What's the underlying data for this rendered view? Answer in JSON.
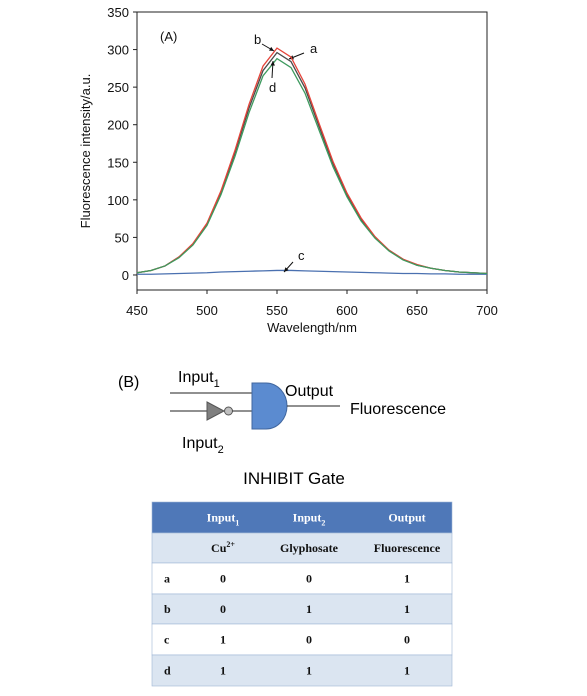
{
  "chart_data": {
    "type": "line",
    "panel_label": "(A)",
    "x_label": "Wavelength/nm",
    "y_label": "Fluorescence intensity/a.u.",
    "x": [
      450,
      460,
      470,
      480,
      490,
      500,
      510,
      520,
      530,
      540,
      550,
      560,
      570,
      580,
      590,
      600,
      610,
      620,
      630,
      640,
      650,
      660,
      670,
      680,
      690,
      700
    ],
    "series": [
      {
        "name": "a",
        "color": "#4a4a4a",
        "values": [
          3,
          6,
          12,
          24,
          41,
          68,
          110,
          163,
          222,
          272,
          296,
          284,
          249,
          198,
          148,
          107,
          74,
          50,
          33,
          21,
          13,
          9,
          6,
          4,
          3,
          2
        ]
      },
      {
        "name": "b",
        "color": "#e5443a",
        "values": [
          3,
          6,
          12,
          24,
          42,
          69,
          112,
          166,
          227,
          278,
          302,
          290,
          254,
          202,
          151,
          109,
          76,
          51,
          33,
          21,
          14,
          9,
          6,
          4,
          3,
          2
        ]
      },
      {
        "name": "c",
        "color": "#4a70b0",
        "values": [
          1,
          1,
          1.5,
          2,
          2.5,
          3,
          4,
          4.5,
          5,
          5.5,
          6,
          6,
          5.5,
          5,
          4.5,
          4,
          3.5,
          3,
          2.5,
          2,
          2,
          1.5,
          1.5,
          1,
          1,
          1
        ]
      },
      {
        "name": "d",
        "color": "#3d9a5e",
        "values": [
          3,
          6,
          12,
          23,
          40,
          66,
          107,
          158,
          216,
          265,
          288,
          276,
          242,
          193,
          144,
          104,
          72,
          49,
          32,
          20,
          13,
          9,
          6,
          4,
          3,
          2
        ]
      }
    ],
    "xlim": [
      450,
      700
    ],
    "xticks": [
      450,
      500,
      550,
      600,
      650,
      700
    ],
    "ylim": [
      -20,
      350
    ],
    "yticks": [
      0,
      50,
      100,
      150,
      200,
      250,
      300,
      350
    ]
  },
  "diagram": {
    "panel_label": "(B)",
    "input1": {
      "text": "Input",
      "sub": "1"
    },
    "input2": {
      "text": "Input",
      "sub": "2"
    },
    "output": "Output",
    "result": "Fluorescence",
    "caption": "INHIBIT Gate"
  },
  "table": {
    "header": [
      {
        "text": "Input",
        "sub": "1"
      },
      {
        "text": "Input",
        "sub": "2"
      },
      {
        "text": "Output"
      }
    ],
    "subheader": [
      {
        "text": "Cu",
        "sup": "2+"
      },
      {
        "text": "Glyphosate"
      },
      {
        "text": "Fluorescence"
      }
    ],
    "rows": [
      [
        "a",
        0,
        0,
        1
      ],
      [
        "b",
        0,
        1,
        1
      ],
      [
        "c",
        1,
        0,
        0
      ],
      [
        "d",
        1,
        1,
        1
      ]
    ]
  }
}
